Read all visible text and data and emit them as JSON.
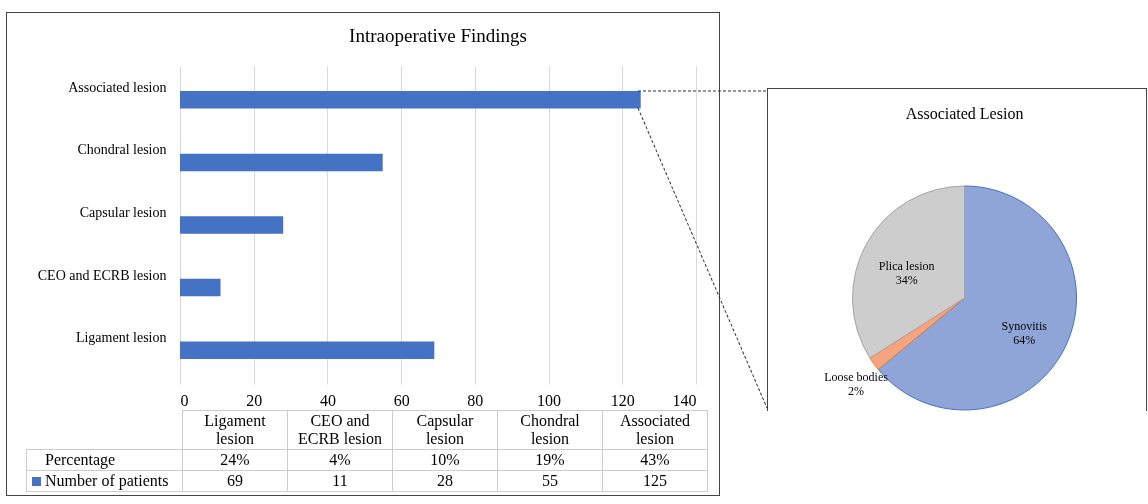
{
  "chart_data": [
    {
      "type": "bar",
      "title": "Intraoperative Findings",
      "orientation": "horizontal",
      "categories": [
        "Associated lesion",
        "Chondral lesion",
        "Capsular lesion",
        "CEO and ECRB lesion",
        "Ligament lesion"
      ],
      "series": [
        {
          "name": "Number of patients",
          "color": "#4472c4",
          "values": [
            125,
            55,
            28,
            11,
            69
          ]
        }
      ],
      "xlim": [
        0,
        140
      ],
      "xticks": [
        0,
        20,
        40,
        60,
        80,
        100,
        120,
        140
      ],
      "grid": "x",
      "legend": "bottom",
      "annotations": [
        "Percentage",
        "24%",
        "4%",
        "10%",
        "19%",
        "43%",
        "69",
        "11",
        "28",
        "55",
        "125"
      ]
    },
    {
      "type": "pie",
      "title": "Associated Lesion",
      "categories": [
        "Synovitis",
        "Loose bodies",
        "Plica lesion"
      ],
      "values": [
        64,
        2,
        34
      ],
      "colors": [
        "#8fa5d8",
        "#f4a47f",
        "#cdcdcd"
      ],
      "value_labels": [
        "64%",
        "2%",
        "34%"
      ]
    }
  ]
}
